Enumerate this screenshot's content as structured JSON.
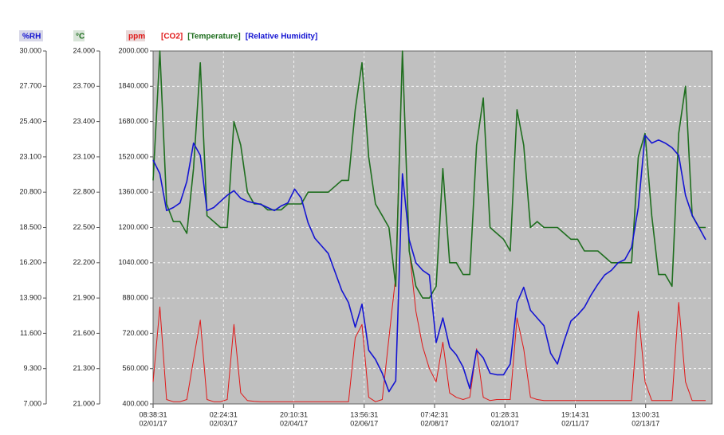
{
  "chart_data": {
    "type": "line",
    "ylabel": "ppm",
    "y2label": "°C",
    "y3label": "%RH",
    "x": [
      "2017-02-01T08:38:31",
      "2017-02-01T12:38:31",
      "2017-02-01T16:38:31",
      "2017-02-01T20:38:31",
      "2017-02-02T00:38:31",
      "2017-02-02T04:38:31",
      "2017-02-02T08:38:31",
      "2017-02-02T12:38:31",
      "2017-02-02T16:38:31",
      "2017-02-02T20:38:31",
      "2017-02-03T00:38:31",
      "2017-02-03T04:38:31",
      "2017-02-03T08:38:31",
      "2017-02-03T12:38:31",
      "2017-02-03T16:38:31",
      "2017-02-03T20:38:31",
      "2017-02-04T00:38:31",
      "2017-02-04T04:38:31",
      "2017-02-04T08:38:31",
      "2017-02-04T12:38:31",
      "2017-02-04T16:38:31",
      "2017-02-04T20:38:31",
      "2017-02-05T00:38:31",
      "2017-02-05T04:38:31",
      "2017-02-05T08:38:31",
      "2017-02-05T12:38:31",
      "2017-02-05T16:38:31",
      "2017-02-05T20:38:31",
      "2017-02-06T00:38:31",
      "2017-02-06T04:38:31",
      "2017-02-06T08:38:31",
      "2017-02-06T12:38:31",
      "2017-02-06T16:38:31",
      "2017-02-06T20:38:31",
      "2017-02-07T00:38:31",
      "2017-02-07T04:38:31",
      "2017-02-07T08:38:31",
      "2017-02-07T12:38:31",
      "2017-02-07T16:38:31",
      "2017-02-07T20:38:31",
      "2017-02-08T00:38:31",
      "2017-02-08T04:38:31",
      "2017-02-08T08:38:31",
      "2017-02-08T12:38:31",
      "2017-02-08T16:38:31",
      "2017-02-08T20:38:31",
      "2017-02-09T00:38:31",
      "2017-02-09T04:38:31",
      "2017-02-09T08:38:31",
      "2017-02-09T12:38:31",
      "2017-02-09T16:38:31",
      "2017-02-09T20:38:31",
      "2017-02-10T00:38:31",
      "2017-02-10T04:38:31",
      "2017-02-10T08:38:31",
      "2017-02-10T12:38:31",
      "2017-02-10T16:38:31",
      "2017-02-10T20:38:31",
      "2017-02-11T00:38:31",
      "2017-02-11T04:38:31",
      "2017-02-11T08:38:31",
      "2017-02-11T12:38:31",
      "2017-02-11T16:38:31",
      "2017-02-11T20:38:31",
      "2017-02-12T00:38:31",
      "2017-02-12T04:38:31",
      "2017-02-12T08:38:31",
      "2017-02-12T12:38:31",
      "2017-02-12T16:38:31",
      "2017-02-12T20:38:31",
      "2017-02-13T00:38:31",
      "2017-02-13T04:38:31",
      "2017-02-13T08:38:31",
      "2017-02-13T12:38:31",
      "2017-02-13T16:38:31",
      "2017-02-13T20:38:31",
      "2017-02-14T00:38:31",
      "2017-02-14T04:38:31",
      "2017-02-14T08:38:31",
      "2017-02-14T12:38:31",
      "2017-02-14T16:38:31",
      "2017-02-14T20:38:31",
      "2017-02-15T00:38:31"
    ],
    "xlim": [
      "2017-02-01T08:38:31",
      "2017-02-15T04:25:00"
    ],
    "xticks": [
      {
        "value": "2017-02-01T08:38:31",
        "label": [
          "08:38:31",
          "02/01/17"
        ]
      },
      {
        "value": "2017-02-03T02:24:31",
        "label": [
          "02:24:31",
          "02/03/17"
        ]
      },
      {
        "value": "2017-02-04T20:10:31",
        "label": [
          "20:10:31",
          "02/04/17"
        ]
      },
      {
        "value": "2017-02-06T13:56:31",
        "label": [
          "13:56:31",
          "02/06/17"
        ]
      },
      {
        "value": "2017-02-08T07:42:31",
        "label": [
          "07:42:31",
          "02/08/17"
        ]
      },
      {
        "value": "2017-02-10T01:28:31",
        "label": [
          "01:28:31",
          "02/10/17"
        ]
      },
      {
        "value": "2017-02-11T19:14:31",
        "label": [
          "19:14:31",
          "02/11/17"
        ]
      },
      {
        "value": "2017-02-13T13:00:31",
        "label": [
          "13:00:31",
          "02/13/17"
        ]
      }
    ],
    "ylim": [
      400,
      2000
    ],
    "yticks": [
      {
        "value": 400,
        "label": "400.000"
      },
      {
        "value": 560,
        "label": "560.000"
      },
      {
        "value": 720,
        "label": "720.000"
      },
      {
        "value": 880,
        "label": "880.000"
      },
      {
        "value": 1040,
        "label": "1040.000"
      },
      {
        "value": 1200,
        "label": "1200.000"
      },
      {
        "value": 1360,
        "label": "1360.000"
      },
      {
        "value": 1520,
        "label": "1520.000"
      },
      {
        "value": 1680,
        "label": "1680.000"
      },
      {
        "value": 1840,
        "label": "1840.000"
      },
      {
        "value": 2000,
        "label": "2000.000"
      }
    ],
    "y2lim": [
      21,
      24
    ],
    "y2ticks": [
      {
        "value": 21,
        "label": "21.000"
      },
      {
        "value": 21.3,
        "label": "21.300"
      },
      {
        "value": 21.6,
        "label": "21.600"
      },
      {
        "value": 21.9,
        "label": "21.900"
      },
      {
        "value": 22.2,
        "label": "22.200"
      },
      {
        "value": 22.5,
        "label": "22.500"
      },
      {
        "value": 22.8,
        "label": "22.800"
      },
      {
        "value": 23.1,
        "label": "23.100"
      },
      {
        "value": 23.4,
        "label": "23.400"
      },
      {
        "value": 23.7,
        "label": "23.700"
      },
      {
        "value": 24,
        "label": "24.000"
      }
    ],
    "y3lim": [
      7,
      30
    ],
    "y3ticks": [
      {
        "value": 7,
        "label": "7.000"
      },
      {
        "value": 9.3,
        "label": "9.300"
      },
      {
        "value": 11.6,
        "label": "11.600"
      },
      {
        "value": 13.9,
        "label": "13.900"
      },
      {
        "value": 16.2,
        "label": "16.200"
      },
      {
        "value": 18.5,
        "label": "18.500"
      },
      {
        "value": 20.8,
        "label": "20.800"
      },
      {
        "value": 23.1,
        "label": "23.100"
      },
      {
        "value": 25.4,
        "label": "25.400"
      },
      {
        "value": 27.7,
        "label": "27.700"
      },
      {
        "value": 30,
        "label": "30.000"
      }
    ],
    "grid": true,
    "series": [
      {
        "name": "[CO2]",
        "color": "#e01818",
        "values": [
          500,
          840,
          420,
          410,
          410,
          420,
          600,
          780,
          420,
          410,
          410,
          420,
          760,
          450,
          415,
          412,
          410,
          410,
          410,
          410,
          410,
          410,
          410,
          410,
          410,
          410,
          410,
          410,
          410,
          410,
          700,
          760,
          430,
          410,
          420,
          700,
          980,
          2000,
          1100,
          820,
          660,
          560,
          500,
          680,
          450,
          430,
          420,
          430,
          650,
          430,
          415,
          420,
          420,
          420,
          790,
          650,
          430,
          420,
          415,
          415,
          415,
          415,
          415,
          415,
          415,
          415,
          415,
          415,
          415,
          415,
          415,
          415,
          820,
          500,
          415,
          415,
          415,
          415,
          860,
          500,
          415,
          415,
          415
        ]
      },
      {
        "name": "[Temperature]",
        "color": "#1e6e1e",
        "axis": "y2",
        "values": [
          22.9,
          24.0,
          22.7,
          22.55,
          22.55,
          22.45,
          23.0,
          23.9,
          22.6,
          22.55,
          22.5,
          22.5,
          23.4,
          23.2,
          22.8,
          22.7,
          22.7,
          22.65,
          22.65,
          22.65,
          22.7,
          22.7,
          22.7,
          22.8,
          22.8,
          22.8,
          22.8,
          22.85,
          22.9,
          22.9,
          23.5,
          23.9,
          23.1,
          22.7,
          22.6,
          22.5,
          22.0,
          24.0,
          22.3,
          22.0,
          21.9,
          21.9,
          22.0,
          23.0,
          22.2,
          22.2,
          22.1,
          22.1,
          23.2,
          23.6,
          22.5,
          22.45,
          22.4,
          22.3,
          23.5,
          23.2,
          22.5,
          22.55,
          22.5,
          22.5,
          22.5,
          22.45,
          22.4,
          22.4,
          22.3,
          22.3,
          22.3,
          22.25,
          22.2,
          22.2,
          22.2,
          22.2,
          23.1,
          23.3,
          22.6,
          22.1,
          22.1,
          22.0,
          23.3,
          23.7,
          22.6,
          22.5,
          22.5
        ]
      },
      {
        "name": "[Relative Humidity]",
        "color": "#1414d2",
        "axis": "y3",
        "values": [
          22.9,
          22.0,
          19.6,
          19.8,
          20.1,
          21.5,
          24.0,
          23.2,
          19.6,
          19.8,
          20.2,
          20.6,
          20.9,
          20.4,
          20.2,
          20.1,
          20.0,
          19.8,
          19.6,
          19.9,
          20.1,
          21.0,
          20.4,
          18.8,
          17.8,
          17.3,
          16.8,
          15.6,
          14.4,
          13.6,
          12.0,
          13.5,
          10.5,
          9.9,
          9.0,
          7.8,
          8.5,
          22.0,
          17.7,
          16.2,
          15.7,
          15.4,
          11.0,
          12.6,
          10.7,
          10.2,
          9.4,
          8.0,
          10.5,
          10.0,
          9.0,
          8.9,
          8.9,
          9.6,
          13.6,
          14.6,
          13.1,
          12.6,
          12.1,
          10.3,
          9.6,
          11.1,
          12.4,
          12.8,
          13.3,
          14.1,
          14.8,
          15.4,
          15.7,
          16.2,
          16.4,
          17.2,
          19.8,
          24.5,
          24.0,
          24.2,
          24.0,
          23.7,
          23.2,
          20.6,
          19.3,
          18.5,
          17.7
        ]
      }
    ]
  }
}
